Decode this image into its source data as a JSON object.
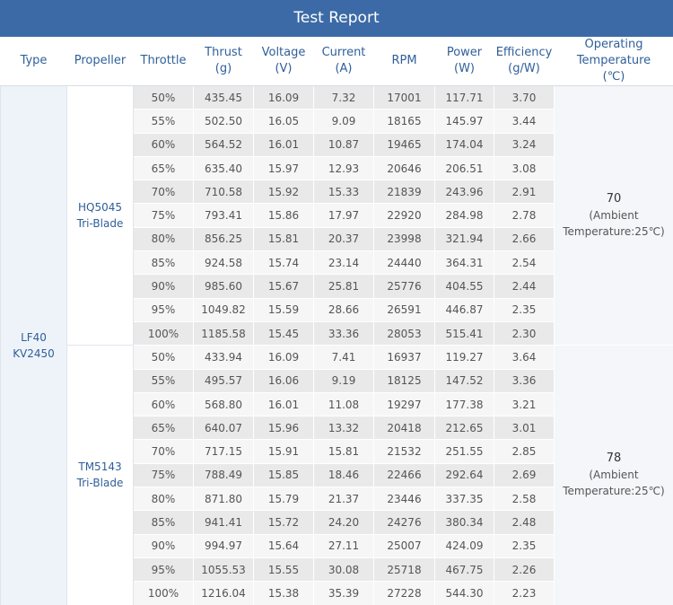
{
  "header": {
    "title": "Test Report"
  },
  "table": {
    "columns": [
      [
        "Type"
      ],
      [
        "Propeller"
      ],
      [
        "Throttle"
      ],
      [
        "Thrust",
        "(g)"
      ],
      [
        "Voltage",
        "(V)"
      ],
      [
        "Current",
        "(A)"
      ],
      [
        "RPM"
      ],
      [
        "Power",
        "(W)"
      ],
      [
        "Efficiency",
        "(g/W)"
      ],
      [
        "Operating",
        "Temperature",
        "(℃)"
      ]
    ],
    "type": [
      "LF40",
      "KV2450"
    ],
    "groups": [
      {
        "propeller": [
          "HQ5045",
          "Tri-Blade"
        ],
        "temperature": {
          "value": "70",
          "note": [
            "(Ambient",
            "Temperature:25℃)"
          ]
        },
        "rows": [
          [
            "50%",
            "435.45",
            "16.09",
            "7.32",
            "17001",
            "117.71",
            "3.70"
          ],
          [
            "55%",
            "502.50",
            "16.05",
            "9.09",
            "18165",
            "145.97",
            "3.44"
          ],
          [
            "60%",
            "564.52",
            "16.01",
            "10.87",
            "19465",
            "174.04",
            "3.24"
          ],
          [
            "65%",
            "635.40",
            "15.97",
            "12.93",
            "20646",
            "206.51",
            "3.08"
          ],
          [
            "70%",
            "710.58",
            "15.92",
            "15.33",
            "21839",
            "243.96",
            "2.91"
          ],
          [
            "75%",
            "793.41",
            "15.86",
            "17.97",
            "22920",
            "284.98",
            "2.78"
          ],
          [
            "80%",
            "856.25",
            "15.81",
            "20.37",
            "23998",
            "321.94",
            "2.66"
          ],
          [
            "85%",
            "924.58",
            "15.74",
            "23.14",
            "24440",
            "364.31",
            "2.54"
          ],
          [
            "90%",
            "985.60",
            "15.67",
            "25.81",
            "25776",
            "404.55",
            "2.44"
          ],
          [
            "95%",
            "1049.82",
            "15.59",
            "28.66",
            "26591",
            "446.87",
            "2.35"
          ],
          [
            "100%",
            "1185.58",
            "15.45",
            "33.36",
            "28053",
            "515.41",
            "2.30"
          ]
        ]
      },
      {
        "propeller": [
          "TM5143",
          "Tri-Blade"
        ],
        "temperature": {
          "value": "78",
          "note": [
            "(Ambient",
            "Temperature:25℃)"
          ]
        },
        "rows": [
          [
            "50%",
            "433.94",
            "16.09",
            "7.41",
            "16937",
            "119.27",
            "3.64"
          ],
          [
            "55%",
            "495.57",
            "16.06",
            "9.19",
            "18125",
            "147.52",
            "3.36"
          ],
          [
            "60%",
            "568.80",
            "16.01",
            "11.08",
            "19297",
            "177.38",
            "3.21"
          ],
          [
            "65%",
            "640.07",
            "15.96",
            "13.32",
            "20418",
            "212.65",
            "3.01"
          ],
          [
            "70%",
            "717.15",
            "15.91",
            "15.81",
            "21532",
            "251.55",
            "2.85"
          ],
          [
            "75%",
            "788.49",
            "15.85",
            "18.46",
            "22466",
            "292.64",
            "2.69"
          ],
          [
            "80%",
            "871.80",
            "15.79",
            "21.37",
            "23446",
            "337.35",
            "2.58"
          ],
          [
            "85%",
            "941.41",
            "15.72",
            "24.20",
            "24276",
            "380.34",
            "2.48"
          ],
          [
            "90%",
            "994.97",
            "15.64",
            "27.11",
            "25007",
            "424.09",
            "2.35"
          ],
          [
            "95%",
            "1055.53",
            "15.55",
            "30.08",
            "25718",
            "467.75",
            "2.26"
          ],
          [
            "100%",
            "1216.04",
            "15.38",
            "35.39",
            "27228",
            "544.30",
            "2.23"
          ]
        ]
      }
    ]
  }
}
